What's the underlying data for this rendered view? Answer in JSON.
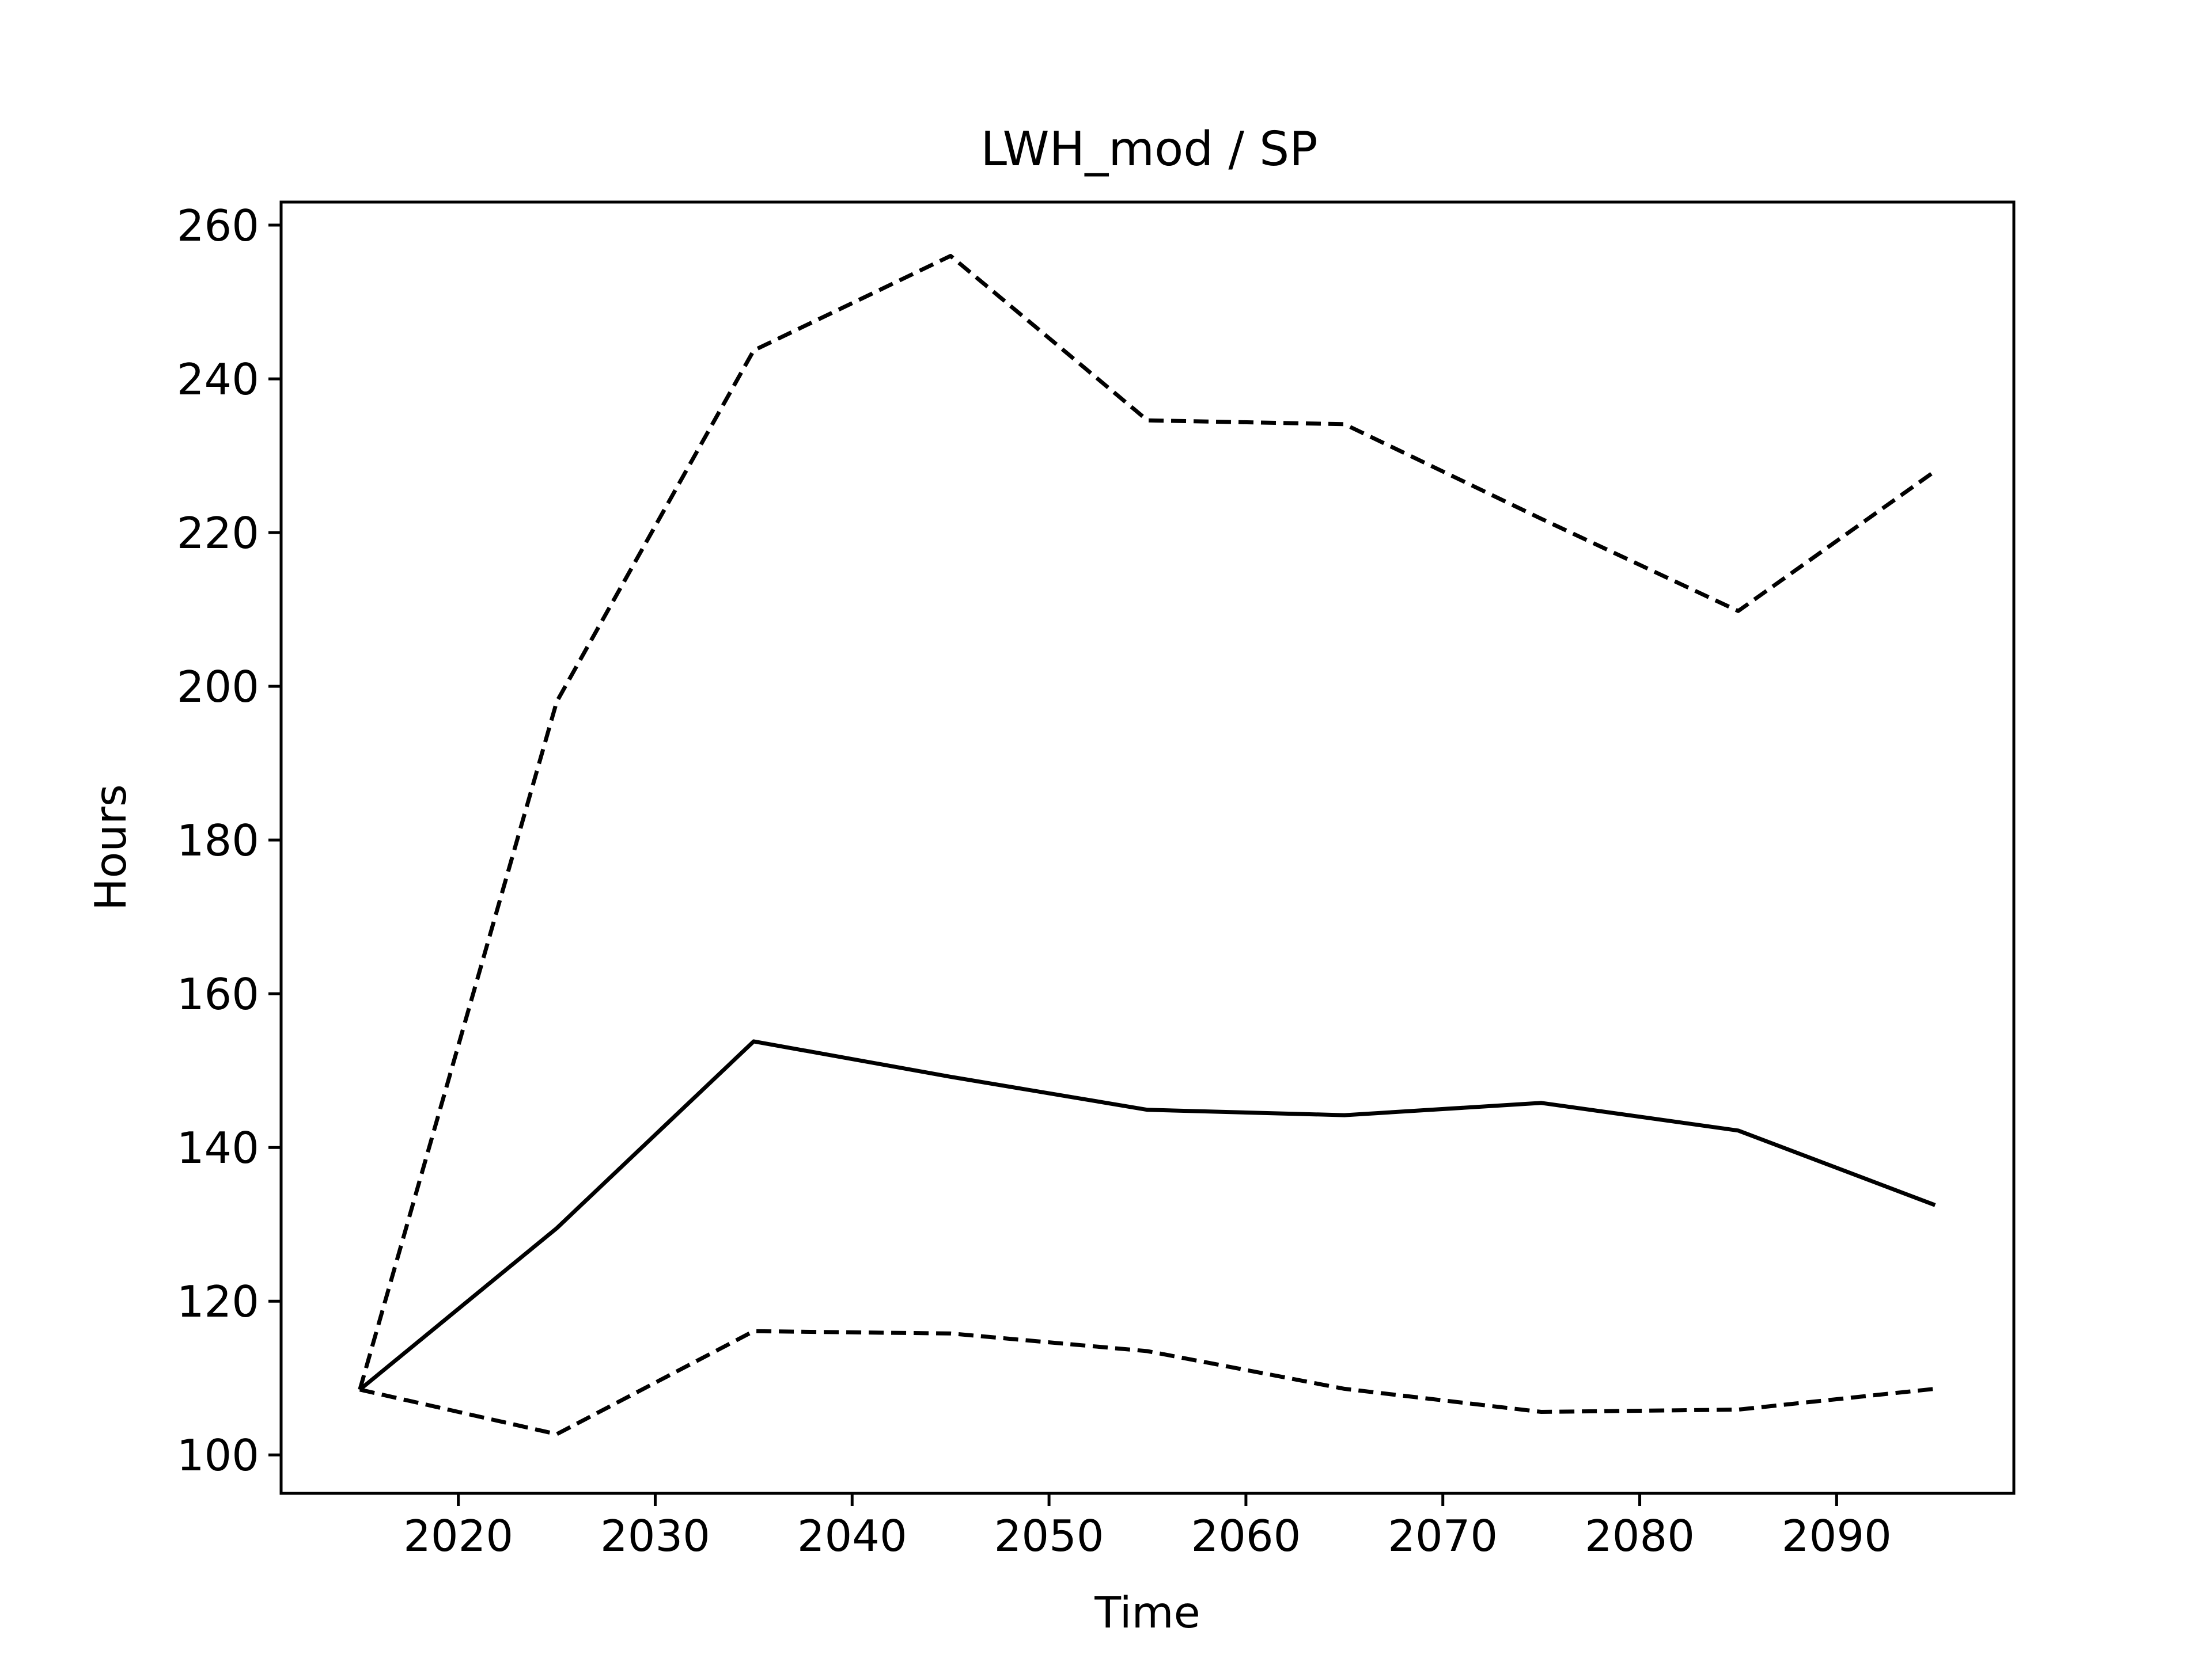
{
  "chart_data": {
    "type": "line",
    "title": "LWH_mod / SP",
    "xlabel": "Time",
    "ylabel": "Hours",
    "xlim": [
      2011,
      2099
    ],
    "ylim": [
      95,
      263
    ],
    "xticks": [
      2020,
      2030,
      2040,
      2050,
      2060,
      2070,
      2080,
      2090
    ],
    "yticks": [
      100,
      120,
      140,
      160,
      180,
      200,
      220,
      240,
      260
    ],
    "x": [
      2015,
      2025,
      2035,
      2045,
      2055,
      2065,
      2075,
      2085,
      2095
    ],
    "grid": false,
    "legend": "none",
    "series": [
      {
        "style": "solid",
        "color": "#000000",
        "values": [
          108.5,
          129.5,
          153.8,
          149.2,
          144.9,
          144.2,
          145.8,
          142.2,
          132.5
        ]
      },
      {
        "style": "dashed",
        "color": "#000000",
        "values": [
          108.5,
          198.0,
          243.7,
          256.0,
          234.6,
          234.1,
          221.8,
          209.8,
          228.0
        ]
      },
      {
        "style": "dashed",
        "color": "#000000",
        "values": [
          108.5,
          102.7,
          116.1,
          115.8,
          113.5,
          108.6,
          105.6,
          105.9,
          108.6
        ]
      }
    ]
  }
}
